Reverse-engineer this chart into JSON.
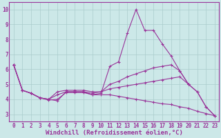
{
  "background_color": "#cce8e8",
  "line_color": "#993399",
  "grid_color": "#aacccc",
  "xlabel": "Windchill (Refroidissement éolien,°C)",
  "xlabel_fontsize": 6.5,
  "tick_fontsize": 5.5,
  "xlim": [
    -0.5,
    23.5
  ],
  "ylim": [
    2.5,
    10.5
  ],
  "yticks": [
    3,
    4,
    5,
    6,
    7,
    8,
    9,
    10
  ],
  "xticks": [
    0,
    1,
    2,
    3,
    4,
    5,
    6,
    7,
    8,
    9,
    10,
    11,
    12,
    13,
    14,
    15,
    16,
    17,
    18,
    19,
    20,
    21,
    22,
    23
  ],
  "series": [
    {
      "x": [
        0,
        1,
        2,
        3,
        4,
        5,
        6,
        7,
        8,
        9,
        10,
        11,
        12,
        13,
        14,
        15,
        16,
        17,
        18,
        19,
        20
      ],
      "y": [
        6.3,
        4.6,
        4.4,
        4.1,
        4.0,
        3.9,
        4.5,
        4.5,
        4.5,
        4.3,
        4.4,
        6.2,
        6.5,
        8.4,
        10.0,
        8.6,
        8.6,
        7.7,
        6.9,
        5.9,
        5.0
      ]
    },
    {
      "x": [
        0,
        1,
        2,
        3,
        4,
        5,
        6,
        7,
        8,
        9,
        10,
        11,
        12,
        13,
        14,
        15,
        16,
        17,
        18,
        19,
        20,
        21,
        22,
        23
      ],
      "y": [
        6.3,
        4.6,
        4.4,
        4.1,
        4.0,
        4.5,
        4.6,
        4.6,
        4.6,
        4.5,
        4.5,
        5.0,
        5.2,
        5.5,
        5.7,
        5.9,
        6.1,
        6.2,
        6.3,
        5.9,
        5.0,
        4.5,
        3.5,
        2.9
      ]
    },
    {
      "x": [
        0,
        1,
        2,
        3,
        4,
        5,
        6,
        7,
        8,
        9,
        10,
        11,
        12,
        13,
        14,
        15,
        16,
        17,
        18,
        19,
        20,
        21,
        22,
        23
      ],
      "y": [
        6.3,
        4.6,
        4.4,
        4.1,
        4.0,
        4.3,
        4.5,
        4.5,
        4.5,
        4.4,
        4.5,
        4.7,
        4.8,
        4.9,
        5.0,
        5.1,
        5.2,
        5.3,
        5.4,
        5.5,
        5.0,
        4.5,
        3.5,
        2.9
      ]
    },
    {
      "x": [
        0,
        1,
        2,
        3,
        4,
        5,
        6,
        7,
        8,
        9,
        10,
        11,
        12,
        13,
        14,
        15,
        16,
        17,
        18,
        19,
        20,
        21,
        22,
        23
      ],
      "y": [
        6.3,
        4.6,
        4.4,
        4.1,
        3.95,
        4.0,
        4.45,
        4.45,
        4.45,
        4.3,
        4.3,
        4.3,
        4.2,
        4.1,
        4.0,
        3.9,
        3.8,
        3.7,
        3.65,
        3.5,
        3.4,
        3.2,
        3.05,
        2.9
      ]
    }
  ]
}
